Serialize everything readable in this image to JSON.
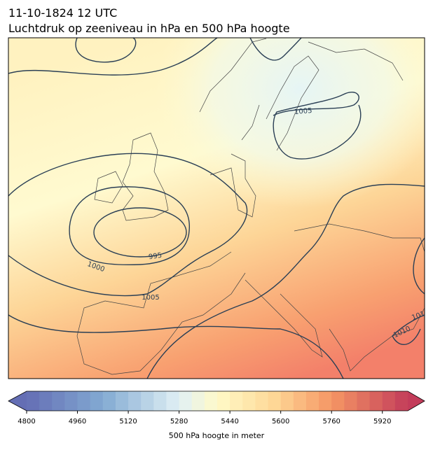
{
  "header": {
    "date": "11-10-1824 12 UTC",
    "title": "Luchtdruk op zeeniveau in hPa en 500 hPa hoogte"
  },
  "contour_labels": [
    "995",
    "1000",
    "1005",
    "1005",
    "1010",
    "101"
  ],
  "colorbar": {
    "label": "500 hPa hoogte in meter",
    "lim": [
      4800,
      6000
    ],
    "ticks": [
      4800,
      4960,
      5120,
      5280,
      5440,
      5600,
      5760,
      5920
    ]
  }
}
